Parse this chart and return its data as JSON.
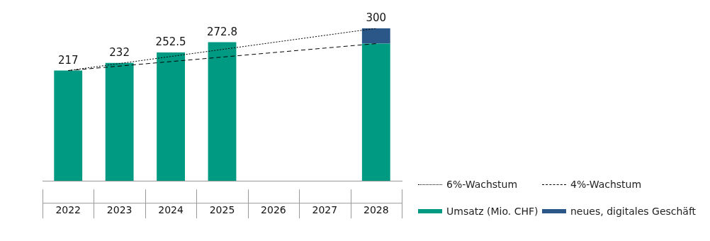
{
  "chart_data": {
    "type": "bar",
    "stacked": true,
    "categories": [
      "2022",
      "2023",
      "2024",
      "2025",
      "2026",
      "2027",
      "2028"
    ],
    "series": [
      {
        "name": "6%-Wachstum",
        "type": "line",
        "color": "#000000",
        "line_style": "dotted",
        "values": [
          217,
          null,
          null,
          null,
          null,
          null,
          300
        ]
      },
      {
        "name": "4%-Wachstum",
        "type": "line",
        "color": "#000000",
        "line_style": "dashed",
        "values": [
          217,
          null,
          null,
          null,
          null,
          null,
          270
        ]
      },
      {
        "name": "Umsatz (Mio. CHF)",
        "color": "#009a82",
        "values": [
          217,
          232,
          252.5,
          272.8,
          null,
          null,
          270
        ],
        "value_labels": [
          "217",
          "232",
          "252.5",
          "272.8",
          null,
          null,
          null
        ]
      },
      {
        "name": "neues, digitales Geschäft",
        "color": "#2a5788",
        "values": [
          null,
          null,
          null,
          null,
          null,
          null,
          30
        ]
      }
    ],
    "totals": [
      null,
      null,
      null,
      null,
      null,
      null,
      "300"
    ],
    "legend": "right",
    "grid": false,
    "marker": "none",
    "tick_labels": "x"
  }
}
